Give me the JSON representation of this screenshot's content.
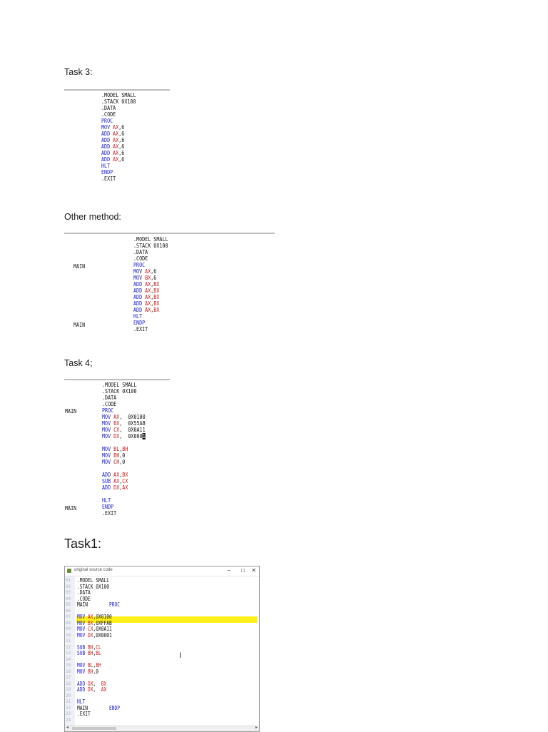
{
  "headings": {
    "task3": "Task 3:",
    "other": "Other method:",
    "task4": "Task 4;",
    "task1": "Task1:"
  },
  "task3_code": [
    [
      {
        "t": ".MODEL SMALL"
      }
    ],
    [
      {
        "t": ".STACK 0X100"
      }
    ],
    [
      {
        "t": ".DATA"
      }
    ],
    [
      {
        "t": ".CODE"
      }
    ],
    [
      {
        "t": "PROC",
        "c": "kw"
      }
    ],
    [
      {
        "t": "MOV ",
        "c": "kw"
      },
      {
        "t": "AX",
        "c": "rg"
      },
      {
        "t": ",6"
      }
    ],
    [
      {
        "t": "ADD ",
        "c": "kw"
      },
      {
        "t": "AX",
        "c": "rg"
      },
      {
        "t": ",6"
      }
    ],
    [
      {
        "t": "ADD ",
        "c": "kw"
      },
      {
        "t": "AX",
        "c": "rg"
      },
      {
        "t": ",6"
      }
    ],
    [
      {
        "t": "ADD ",
        "c": "kw"
      },
      {
        "t": "AX",
        "c": "rg"
      },
      {
        "t": ",6"
      }
    ],
    [
      {
        "t": "ADD ",
        "c": "kw"
      },
      {
        "t": "AX",
        "c": "rg"
      },
      {
        "t": ",6"
      }
    ],
    [
      {
        "t": "ADD ",
        "c": "kw"
      },
      {
        "t": "AX",
        "c": "rg"
      },
      {
        "t": ",6"
      }
    ],
    [
      {
        "t": "HLT",
        "c": "kw"
      }
    ],
    [
      {
        "t": "ENDP",
        "c": "kw"
      }
    ],
    [
      {
        "t": ".EXIT"
      }
    ]
  ],
  "other_labels": {
    "main_top": "MAIN",
    "main_bottom": "MAIN"
  },
  "other_code": [
    [
      {
        "t": ".MODEL SMALL"
      }
    ],
    [
      {
        "t": ".STACK 0X100"
      }
    ],
    [
      {
        "t": ".DATA"
      }
    ],
    [
      {
        "t": ".CODE"
      }
    ],
    [
      {
        "t": "PROC",
        "c": "kw"
      }
    ],
    [
      {
        "t": "MOV ",
        "c": "kw"
      },
      {
        "t": "AX",
        "c": "rg"
      },
      {
        "t": ",6"
      }
    ],
    [
      {
        "t": "MOV ",
        "c": "kw"
      },
      {
        "t": "BX",
        "c": "rg"
      },
      {
        "t": ",6"
      }
    ],
    [
      {
        "t": "ADD ",
        "c": "kw"
      },
      {
        "t": "AX",
        "c": "rg"
      },
      {
        "t": ","
      },
      {
        "t": "BX",
        "c": "rg"
      }
    ],
    [
      {
        "t": "ADD ",
        "c": "kw"
      },
      {
        "t": "AX",
        "c": "rg"
      },
      {
        "t": ","
      },
      {
        "t": "BX",
        "c": "rg"
      }
    ],
    [
      {
        "t": "ADD ",
        "c": "kw"
      },
      {
        "t": "AX",
        "c": "rg"
      },
      {
        "t": ","
      },
      {
        "t": "BX",
        "c": "rg"
      }
    ],
    [
      {
        "t": "ADD ",
        "c": "kw"
      },
      {
        "t": "AX",
        "c": "rg"
      },
      {
        "t": ","
      },
      {
        "t": "BX",
        "c": "rg"
      }
    ],
    [
      {
        "t": "ADD ",
        "c": "kw"
      },
      {
        "t": "AX",
        "c": "rg"
      },
      {
        "t": ","
      },
      {
        "t": "BX",
        "c": "rg"
      }
    ],
    [
      {
        "t": "HLT",
        "c": "kw"
      }
    ],
    [
      {
        "t": "ENDP",
        "c": "kw"
      }
    ],
    [
      {
        "t": ".EXIT"
      }
    ]
  ],
  "task4_labels": {
    "main_top": "MAIN",
    "main_bottom": "MAIN"
  },
  "task4_code": [
    [
      {
        "t": ".MODEL SMALL"
      }
    ],
    [
      {
        "t": ".STACK 0X100"
      }
    ],
    [
      {
        "t": ".DATA"
      }
    ],
    [
      {
        "t": ".CODE"
      }
    ],
    [
      {
        "t": "PROC",
        "c": "kw"
      }
    ],
    [
      {
        "t": "MOV ",
        "c": "kw"
      },
      {
        "t": "AX",
        "c": "rg"
      },
      {
        "t": ",  0X0100"
      }
    ],
    [
      {
        "t": "MOV ",
        "c": "kw"
      },
      {
        "t": "BX",
        "c": "rg"
      },
      {
        "t": ",  0X55AB"
      }
    ],
    [
      {
        "t": "MOV ",
        "c": "kw"
      },
      {
        "t": "CX",
        "c": "rg"
      },
      {
        "t": ",  0X0A11"
      }
    ],
    [
      {
        "t": "MOV ",
        "c": "kw"
      },
      {
        "t": "DX",
        "c": "rg"
      },
      {
        "t": ",  0X000"
      },
      {
        "t": "1",
        "c": "cur"
      }
    ],
    [
      {
        "t": ""
      }
    ],
    [
      {
        "t": "MOV ",
        "c": "kw"
      },
      {
        "t": "BL",
        "c": "rg"
      },
      {
        "t": ","
      },
      {
        "t": "BH",
        "c": "rg"
      }
    ],
    [
      {
        "t": "MOV ",
        "c": "kw"
      },
      {
        "t": "BH",
        "c": "rg"
      },
      {
        "t": ",0"
      }
    ],
    [
      {
        "t": "MOV ",
        "c": "kw"
      },
      {
        "t": "CH",
        "c": "rg"
      },
      {
        "t": ",0"
      }
    ],
    [
      {
        "t": ""
      }
    ],
    [
      {
        "t": "ADD ",
        "c": "kw"
      },
      {
        "t": "AX",
        "c": "rg"
      },
      {
        "t": ","
      },
      {
        "t": "BX",
        "c": "rg"
      }
    ],
    [
      {
        "t": "SUB ",
        "c": "kw"
      },
      {
        "t": "AX",
        "c": "rg"
      },
      {
        "t": ","
      },
      {
        "t": "CX",
        "c": "rg"
      }
    ],
    [
      {
        "t": "ADD ",
        "c": "kw"
      },
      {
        "t": "DX",
        "c": "rg"
      },
      {
        "t": ","
      },
      {
        "t": "AX",
        "c": "rg"
      }
    ],
    [
      {
        "t": ""
      }
    ],
    [
      {
        "t": "HLT",
        "c": "kw"
      }
    ],
    [
      {
        "t": "ENDP",
        "c": "kw"
      }
    ],
    [
      {
        "t": ".EXIT"
      }
    ]
  ],
  "task1_window": {
    "title": "original source code",
    "min": "–",
    "max": "□",
    "close": "✕",
    "line_numbers": "01\n02\n03\n04\n05\n06\n07\n08\n09\n10\n11\n12\n13\n14\n15\n16\n17\n18\n19\n20\n21\n22\n23\n24",
    "code": [
      [
        {
          "t": ".MODEL SMALL"
        }
      ],
      [
        {
          "t": ".STACK 0X100"
        }
      ],
      [
        {
          "t": ".DATA"
        }
      ],
      [
        {
          "t": ".CODE"
        }
      ],
      [
        {
          "t": "MAIN        "
        },
        {
          "t": "PROC",
          "c": "kw"
        }
      ],
      [
        {
          "t": ""
        }
      ],
      [
        {
          "t": "MOV ",
          "c": "kw"
        },
        {
          "t": "AX",
          "c": "rg"
        },
        {
          "t": ",0X0100"
        }
      ],
      [
        {
          "t": "MOV ",
          "c": "kw"
        },
        {
          "t": "BX",
          "c": "rg"
        },
        {
          "t": ",0XFFAB"
        }
      ],
      [
        {
          "t": "MOV ",
          "c": "kw"
        },
        {
          "t": "CX",
          "c": "rg"
        },
        {
          "t": ",0X0A11"
        }
      ],
      [
        {
          "t": "MOV ",
          "c": "kw"
        },
        {
          "t": "DX",
          "c": "rg"
        },
        {
          "t": ",0X0001"
        }
      ],
      [
        {
          "t": ""
        }
      ],
      [
        {
          "t": "SUB ",
          "c": "kw"
        },
        {
          "t": "BH",
          "c": "rg"
        },
        {
          "t": ","
        },
        {
          "t": "CL",
          "c": "rg"
        }
      ],
      [
        {
          "t": "SUB ",
          "c": "kw"
        },
        {
          "t": "BH",
          "c": "rg"
        },
        {
          "t": ","
        },
        {
          "t": "BL",
          "c": "rg"
        }
      ],
      [
        {
          "t": ""
        }
      ],
      [
        {
          "t": "MOV ",
          "c": "kw"
        },
        {
          "t": "BL",
          "c": "rg"
        },
        {
          "t": ","
        },
        {
          "t": "BH",
          "c": "rg"
        }
      ],
      [
        {
          "t": "MOV ",
          "c": "kw"
        },
        {
          "t": "BH",
          "c": "rg"
        },
        {
          "t": ",0"
        }
      ],
      [
        {
          "t": ""
        }
      ],
      [
        {
          "t": "ADD ",
          "c": "kw"
        },
        {
          "t": "DX",
          "c": "rg"
        },
        {
          "t": ",  "
        },
        {
          "t": "BX",
          "c": "rg"
        }
      ],
      [
        {
          "t": "ADD ",
          "c": "kw"
        },
        {
          "t": "DX",
          "c": "rg"
        },
        {
          "t": ",  "
        },
        {
          "t": "AX",
          "c": "rg"
        }
      ],
      [
        {
          "t": ""
        }
      ],
      [
        {
          "t": "HLT",
          "c": "kw"
        }
      ],
      [
        {
          "t": "MAIN        "
        },
        {
          "t": "ENDP",
          "c": "kw"
        }
      ],
      [
        {
          "t": ".EXIT"
        }
      ]
    ]
  },
  "colors": {
    "keyword": "#1b1bc8",
    "register": "#c21a1a",
    "highlight": "#ffef1a"
  },
  "icons": {
    "ibeam": "I"
  }
}
